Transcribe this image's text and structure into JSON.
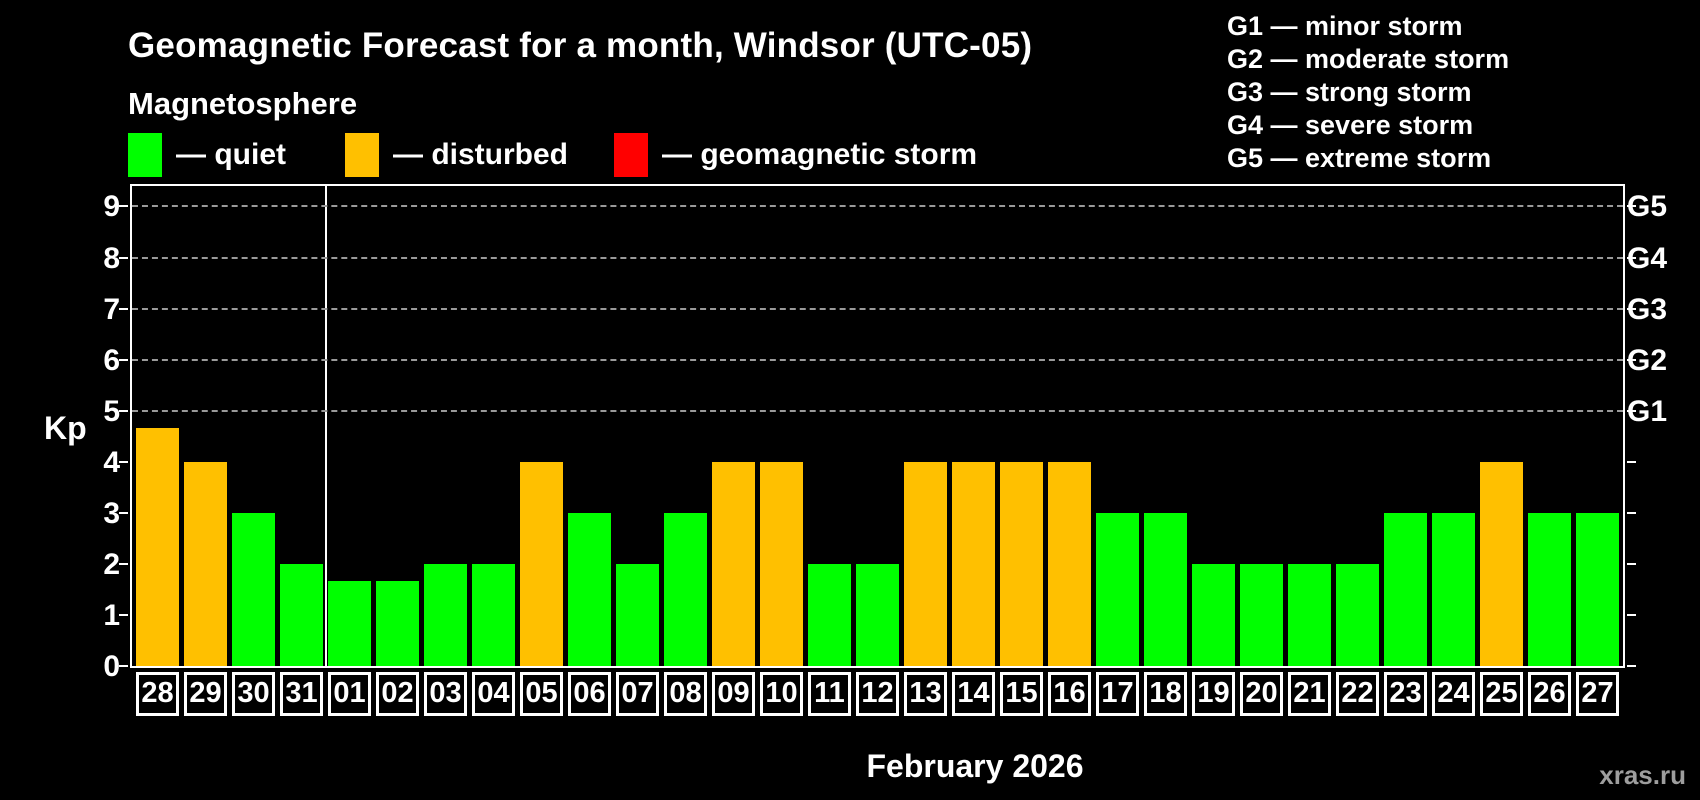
{
  "header": {
    "title": "Geomagnetic Forecast for a month, Windsor (UTC-05)",
    "subtitle": "Magnetosphere"
  },
  "legend": {
    "items": [
      {
        "name": "quiet",
        "label": "— quiet",
        "color": "#00FF00"
      },
      {
        "name": "disturbed",
        "label": "— disturbed",
        "color": "#FFC000"
      },
      {
        "name": "storm",
        "label": "— geomagnetic storm",
        "color": "#FF0000"
      }
    ]
  },
  "g_scale_legend": {
    "items": [
      "G1 — minor storm",
      "G2 — moderate storm",
      "G3 — strong storm",
      "G4 — severe storm",
      "G5 — extreme storm"
    ]
  },
  "axis": {
    "y_label": "Kp",
    "x_label": "February 2026",
    "y_ticks": [
      0,
      1,
      2,
      3,
      4,
      5,
      6,
      7,
      8,
      9
    ],
    "right_labels": [
      {
        "value": 5,
        "label": "G1"
      },
      {
        "value": 6,
        "label": "G2"
      },
      {
        "value": 7,
        "label": "G3"
      },
      {
        "value": 8,
        "label": "G4"
      },
      {
        "value": 9,
        "label": "G5"
      }
    ]
  },
  "watermark": "xras.ru",
  "colors": {
    "quiet": "#00FF00",
    "disturbed": "#FFC000",
    "storm": "#FF0000",
    "grid": "#9A9A9A",
    "background": "#000000",
    "text": "#FFFFFF",
    "watermark_text": "#9E9E9E"
  },
  "chart_data": {
    "type": "bar",
    "title": "Geomagnetic Forecast for a month, Windsor (UTC-05)",
    "xlabel": "February 2026",
    "ylabel": "Kp",
    "ylim": [
      0,
      9.4
    ],
    "grid": "dashed horizontal at Kp 5-9 (G1-G5)",
    "legend_position": "top-left",
    "categories": [
      "28",
      "29",
      "30",
      "31",
      "01",
      "02",
      "03",
      "04",
      "05",
      "06",
      "07",
      "08",
      "09",
      "10",
      "11",
      "12",
      "13",
      "14",
      "15",
      "16",
      "17",
      "18",
      "19",
      "20",
      "21",
      "22",
      "23",
      "24",
      "25",
      "26",
      "27"
    ],
    "values": [
      4.67,
      4,
      3,
      2,
      1.67,
      1.67,
      2,
      2,
      4,
      3,
      2,
      3,
      4,
      4,
      2,
      2,
      4,
      4,
      4,
      4,
      3,
      3,
      2,
      2,
      2,
      2,
      3,
      3,
      4,
      3,
      3
    ],
    "statuses": [
      "disturbed",
      "disturbed",
      "quiet",
      "quiet",
      "quiet",
      "quiet",
      "quiet",
      "quiet",
      "disturbed",
      "quiet",
      "quiet",
      "quiet",
      "disturbed",
      "disturbed",
      "quiet",
      "quiet",
      "disturbed",
      "disturbed",
      "disturbed",
      "disturbed",
      "quiet",
      "quiet",
      "quiet",
      "quiet",
      "quiet",
      "quiet",
      "quiet",
      "quiet",
      "disturbed",
      "quiet",
      "quiet"
    ],
    "gridlines": [
      5,
      6,
      7,
      8,
      9
    ],
    "right_axis_labels": {
      "5": "G1",
      "6": "G2",
      "7": "G3",
      "8": "G4",
      "9": "G5"
    },
    "month_divider_at_index": 4
  }
}
